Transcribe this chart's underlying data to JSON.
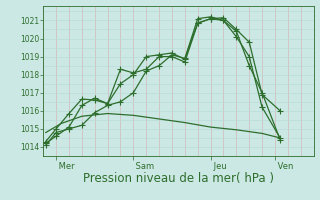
{
  "background_color": "#cce8e4",
  "grid_color_h": "#b8dcd8",
  "grid_color_v": "#d4b8b8",
  "line_color": "#2d6e2d",
  "yticks": [
    1014,
    1015,
    1016,
    1017,
    1018,
    1019,
    1020,
    1021
  ],
  "ylim": [
    1013.5,
    1021.8
  ],
  "xlabel": "Pression niveau de la mer( hPa )",
  "xlabel_fontsize": 8.5,
  "day_labels": [
    " Mer",
    " Sam",
    " Jeu",
    " Ven"
  ],
  "day_positions": [
    0.5,
    3.5,
    6.5,
    9.0
  ],
  "xlim": [
    0.0,
    10.5
  ],
  "series1_x": [
    0.1,
    0.5,
    1.0,
    1.5,
    2.0,
    2.5,
    3.0,
    3.5,
    4.0,
    4.5,
    5.0,
    5.5,
    6.0,
    6.5,
    7.0,
    7.5,
    8.0,
    8.5,
    9.2
  ],
  "series1_y": [
    1014.1,
    1014.8,
    1015.0,
    1015.2,
    1015.9,
    1016.3,
    1016.5,
    1017.0,
    1018.2,
    1018.5,
    1019.1,
    1018.9,
    1021.1,
    1021.2,
    1021.0,
    1020.4,
    1018.5,
    1017.0,
    1014.4
  ],
  "series2_x": [
    0.1,
    0.5,
    1.0,
    1.5,
    2.0,
    2.5,
    3.0,
    3.5,
    4.0,
    4.5,
    5.0,
    5.5,
    6.0,
    6.5,
    7.0,
    7.5,
    8.0,
    8.5,
    9.2
  ],
  "series2_y": [
    1014.2,
    1014.6,
    1015.1,
    1016.3,
    1016.7,
    1016.4,
    1017.5,
    1018.0,
    1019.0,
    1019.1,
    1019.2,
    1018.85,
    1020.85,
    1021.1,
    1021.0,
    1020.1,
    1019.0,
    1016.2,
    1014.5
  ],
  "series3_x": [
    0.1,
    0.5,
    1.0,
    1.5,
    2.0,
    2.5,
    3.0,
    3.5,
    4.0,
    4.5,
    5.0,
    5.5,
    6.0,
    6.5,
    7.0,
    7.5,
    8.0,
    8.5,
    9.2
  ],
  "series3_y": [
    1014.3,
    1015.0,
    1015.85,
    1016.65,
    1016.6,
    1016.4,
    1018.3,
    1018.1,
    1018.3,
    1019.0,
    1019.0,
    1018.7,
    1020.85,
    1021.1,
    1021.15,
    1020.5,
    1019.8,
    1016.9,
    1016.0
  ],
  "series4_x": [
    0.1,
    0.7,
    1.5,
    2.5,
    3.5,
    4.5,
    5.5,
    6.5,
    7.5,
    8.5,
    9.2
  ],
  "series4_y": [
    1014.8,
    1015.3,
    1015.7,
    1015.85,
    1015.75,
    1015.55,
    1015.35,
    1015.1,
    1014.95,
    1014.75,
    1014.5
  ]
}
